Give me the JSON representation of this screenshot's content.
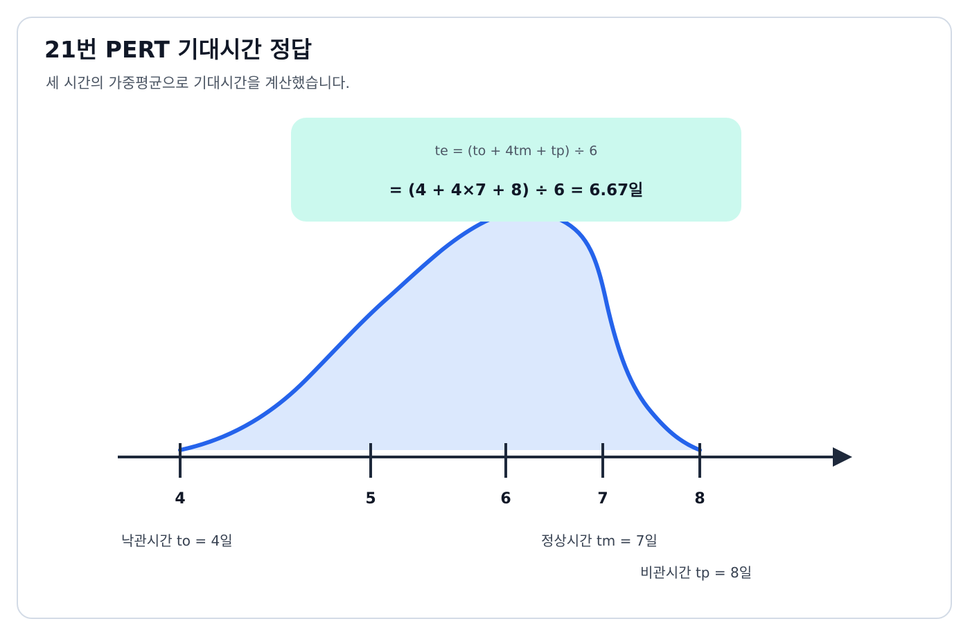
{
  "header": {
    "title": "21번 PERT 기대시간 정답",
    "subtitle": "세 시간의 가중평균으로 기대시간을 계산했습니다."
  },
  "formula": {
    "general": "te = (to + 4tm + tp) ÷ 6",
    "result": "= (4 + 4×7 + 8) ÷ 6 = 6.67일"
  },
  "axis": {
    "ticks": [
      "4",
      "5",
      "6",
      "7",
      "8"
    ]
  },
  "labels": {
    "optimistic": "낙관시간 to = 4일",
    "most_likely": "정상시간 tm = 7일",
    "pessimistic": "비관시간 tp = 8일"
  },
  "colors": {
    "curve": "#2563eb",
    "curve_fill": "#dbe8fd",
    "axis": "#1e293b",
    "formula_bg": "#cbf9ee"
  }
}
